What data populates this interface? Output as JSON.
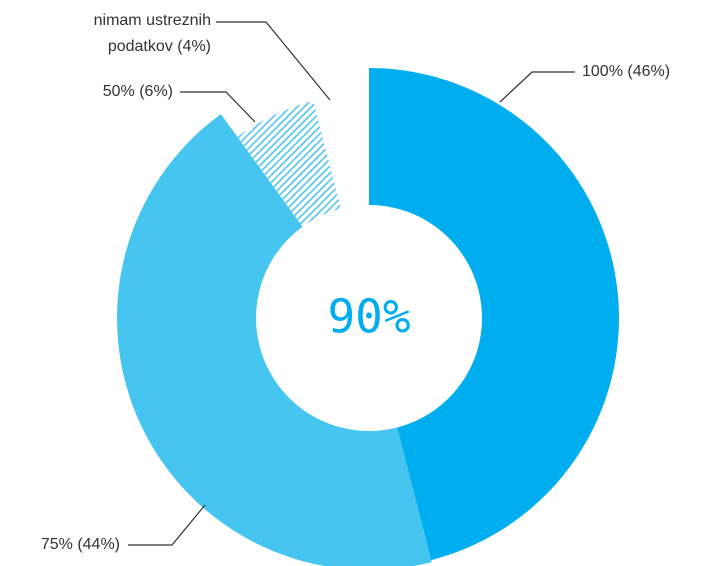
{
  "chart_data": {
    "type": "donut",
    "categories": [
      "100%",
      "75%",
      "50%",
      "nimam ustreznih podatkov"
    ],
    "values": [
      46,
      44,
      6,
      4
    ],
    "value_labels": [
      "100% (46%)",
      "75% (44%)",
      "50% (6%)",
      "nimam ustreznih podatkov (4%)"
    ],
    "colors": [
      "#00aeef",
      "#45c5f0",
      "#45c5f0",
      "#ffffff"
    ],
    "hatched": [
      false,
      false,
      true,
      false
    ],
    "center_label": "90%",
    "center_color": "#00aeef"
  }
}
